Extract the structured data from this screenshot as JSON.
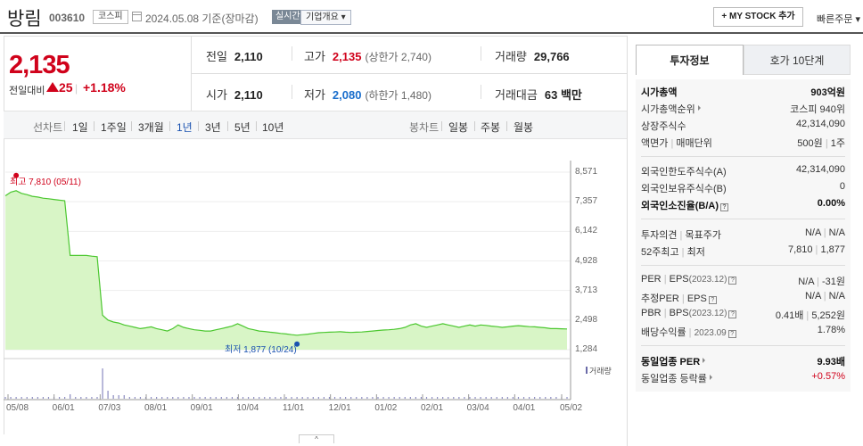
{
  "header": {
    "stock_name": "방림",
    "stock_code": "003610",
    "market_badge": "코스피",
    "date_text": "2024.05.08 기준(장마감)",
    "realtime_badge": "실시간",
    "company_overview": "기업개요 ▾",
    "my_stock_button": "+ MY STOCK 추가",
    "quick_order": "빠른주문 ▾"
  },
  "price": {
    "current": "2,135",
    "change_label": "전일대비",
    "change_value": "25",
    "change_pct": "+1.18%"
  },
  "quote": {
    "prev_label": "전일",
    "prev_value": "2,110",
    "high_label": "고가",
    "high_value": "2,135",
    "upper_limit": "(상한가 2,740)",
    "volume_label": "거래량",
    "volume_value": "29,766",
    "open_label": "시가",
    "open_value": "2,110",
    "low_label": "저가",
    "low_value": "2,080",
    "lower_limit": "(하한가 1,480)",
    "amount_label": "거래대금",
    "amount_value": "63",
    "amount_unit": "백만"
  },
  "tabs": {
    "line_chart": "선차트",
    "periods": [
      "1일",
      "1주일",
      "3개월",
      "1년",
      "3년",
      "5년",
      "10년"
    ],
    "selected_period": "1년",
    "candle_chart": "봉차트",
    "candle_periods": [
      "일봉",
      "주봉",
      "월봉"
    ]
  },
  "chart": {
    "high_label": "최고 7,810 (05/11)",
    "low_label": "최저 1,877 (10/24)",
    "volume_label": "거래량",
    "collapse_icon": "^"
  },
  "chart_data": {
    "type": "area",
    "title": "",
    "ylim": [
      1284,
      8571
    ],
    "y_ticks": [
      "8,571",
      "7,357",
      "6,142",
      "4,928",
      "3,713",
      "2,498",
      "1,284"
    ],
    "x_ticks": [
      "05/08",
      "06/01",
      "07/03",
      "08/01",
      "09/01",
      "10/04",
      "11/01",
      "12/01",
      "01/02",
      "02/01",
      "03/04",
      "04/01",
      "05/02"
    ],
    "series": [
      {
        "values": [
          7600,
          7750,
          7810,
          7700,
          7650,
          7580,
          7550,
          7500,
          7480,
          7450,
          7420,
          7400,
          5150,
          5150,
          5150,
          5150,
          5120,
          5100,
          2700,
          2500,
          2420,
          2380,
          2300,
          2250,
          2200,
          2150,
          2180,
          2220,
          2150,
          2100,
          2050,
          2150,
          2300,
          2200,
          2150,
          2100,
          2080,
          2050,
          2050,
          2100,
          2150,
          2200,
          2250,
          2350,
          2250,
          2150,
          2100,
          2050,
          2030,
          2000,
          1980,
          1950,
          1930,
          1900,
          1877,
          1900,
          1920,
          1950,
          1980,
          1990,
          2000,
          2010,
          2020,
          2000,
          1990,
          2000,
          2010,
          2030,
          2050,
          2070,
          2090,
          2100,
          2120,
          2150,
          2200,
          2300,
          2350,
          2250,
          2200,
          2250,
          2300,
          2350,
          2300,
          2250,
          2200,
          2250,
          2300,
          2250,
          2300,
          2280,
          2250,
          2230,
          2200,
          2220,
          2250,
          2270,
          2250,
          2230,
          2220,
          2200,
          2180,
          2150,
          2150,
          2140,
          2135
        ]
      }
    ],
    "volume_spike_at": "07/03"
  },
  "panel": {
    "tab_invest": "투자정보",
    "tab_hoga": "호가 10단계",
    "market_cap_label": "시가총액",
    "market_cap_value": "903억원",
    "market_cap_rank_label": "시가총액순위",
    "market_cap_rank_value": "코스피 940위",
    "shares_label": "상장주식수",
    "shares_value": "42,314,090",
    "par_label": "액면가",
    "par_sep": "|",
    "unit_label": "매매단위",
    "par_value": "500원",
    "unit_value": "1주",
    "foreign_limit_label": "외국인한도주식수(A)",
    "foreign_limit_value": "42,314,090",
    "foreign_hold_label": "외국인보유주식수(B)",
    "foreign_hold_value": "0",
    "foreign_rate_label": "외국인소진율(B/A)",
    "foreign_rate_value": "0.00%",
    "opinion_label": "투자의견",
    "target_label": "목표주가",
    "opinion_value": "N/A",
    "target_value": "N/A",
    "week52_label": "52주최고",
    "week52_low_label": "최저",
    "week52_high": "7,810",
    "week52_low": "1,877",
    "per_label": "PER",
    "eps_label": "EPS",
    "per_eps_date": "(2023.12)",
    "per_value": "N/A",
    "eps_value": "-31원",
    "est_per_label": "추정PER",
    "est_eps_label": "EPS",
    "est_per_value": "N/A",
    "est_eps_value": "N/A",
    "pbr_label": "PBR",
    "bps_label": "BPS",
    "pbr_bps_date": "(2023.12)",
    "pbr_value": "0.41배",
    "bps_value": "5,252원",
    "dividend_label": "배당수익률",
    "dividend_date": "2023.09",
    "dividend_value": "1.78%",
    "industry_per_label": "동일업종 PER",
    "industry_per_value": "9.93배",
    "industry_rate_label": "동일업종 등락률",
    "industry_rate_value": "+0.57%"
  }
}
